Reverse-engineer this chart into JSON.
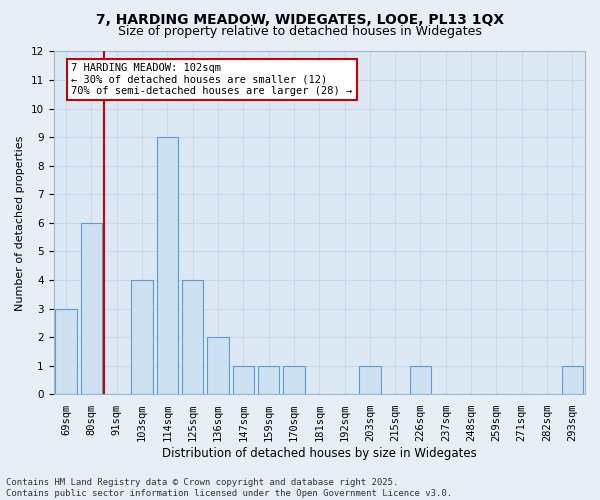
{
  "title1": "7, HARDING MEADOW, WIDEGATES, LOOE, PL13 1QX",
  "title2": "Size of property relative to detached houses in Widegates",
  "xlabel": "Distribution of detached houses by size in Widegates",
  "ylabel": "Number of detached properties",
  "categories": [
    "69sqm",
    "80sqm",
    "91sqm",
    "103sqm",
    "114sqm",
    "125sqm",
    "136sqm",
    "147sqm",
    "159sqm",
    "170sqm",
    "181sqm",
    "192sqm",
    "203sqm",
    "215sqm",
    "226sqm",
    "237sqm",
    "248sqm",
    "259sqm",
    "271sqm",
    "282sqm",
    "293sqm"
  ],
  "values": [
    3,
    6,
    0,
    4,
    9,
    4,
    2,
    1,
    1,
    1,
    0,
    0,
    1,
    0,
    1,
    0,
    0,
    0,
    0,
    0,
    1
  ],
  "bar_color": "#cce0f0",
  "bar_edge_color": "#5b9bd5",
  "annotation_text": "7 HARDING MEADOW: 102sqm\n← 30% of detached houses are smaller (12)\n70% of semi-detached houses are larger (28) →",
  "annotation_box_color": "#ffffff",
  "annotation_box_edge": "#cc0000",
  "vline_color": "#cc0000",
  "vline_x": 1.5,
  "ylim": [
    0,
    12
  ],
  "yticks": [
    0,
    1,
    2,
    3,
    4,
    5,
    6,
    7,
    8,
    9,
    10,
    11,
    12
  ],
  "grid_color": "#c8d8ea",
  "bg_color": "#dce9f5",
  "fig_bg_color": "#e8eef5",
  "footer": "Contains HM Land Registry data © Crown copyright and database right 2025.\nContains public sector information licensed under the Open Government Licence v3.0.",
  "title1_fontsize": 10,
  "title2_fontsize": 9,
  "xlabel_fontsize": 8.5,
  "ylabel_fontsize": 8,
  "tick_fontsize": 7.5,
  "footer_fontsize": 6.5,
  "annot_fontsize": 7.5
}
